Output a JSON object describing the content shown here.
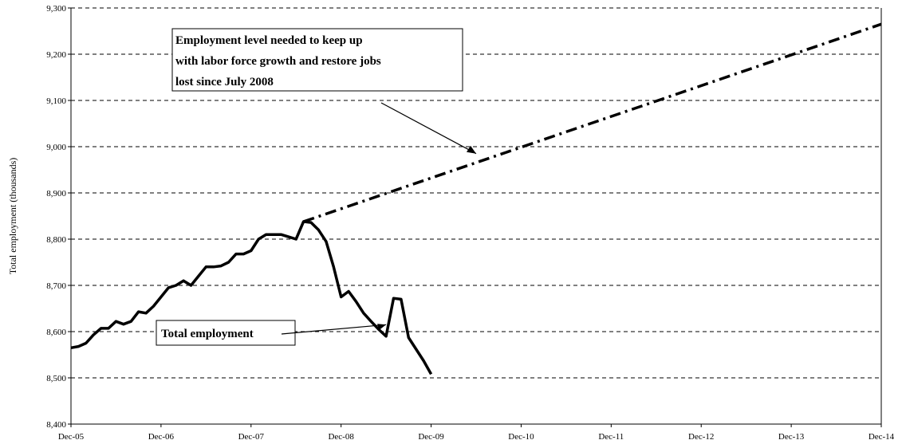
{
  "chart_data": {
    "type": "line",
    "ylabel": "Total  employment (thousands)",
    "xlabel": "",
    "ylim": [
      8400,
      9300
    ],
    "y_ticks": [
      "8,400",
      "8,500",
      "8,600",
      "8,700",
      "8,800",
      "8,900",
      "9,000",
      "9,100",
      "9,200",
      "9,300"
    ],
    "x_range": [
      "Dec-05",
      "Dec-14"
    ],
    "x_ticks": [
      "Dec-05",
      "Dec-06",
      "Dec-07",
      "Dec-08",
      "Dec-09",
      "Dec-10",
      "Dec-11",
      "Dec-12",
      "Dec-13",
      "Dec-14"
    ],
    "grid": "horizontal dashed",
    "series": [
      {
        "name": "Total employment",
        "style": "solid",
        "color": "#000000",
        "x": [
          "Dec-05",
          "Jan-06",
          "Feb-06",
          "Mar-06",
          "Apr-06",
          "May-06",
          "Jun-06",
          "Jul-06",
          "Aug-06",
          "Sep-06",
          "Oct-06",
          "Nov-06",
          "Dec-06",
          "Jan-07",
          "Feb-07",
          "Mar-07",
          "Apr-07",
          "May-07",
          "Jun-07",
          "Jul-07",
          "Aug-07",
          "Sep-07",
          "Oct-07",
          "Nov-07",
          "Dec-07",
          "Jan-08",
          "Feb-08",
          "Mar-08",
          "Apr-08",
          "May-08",
          "Jun-08",
          "Jul-08",
          "Aug-08",
          "Sep-08",
          "Oct-08",
          "Nov-08",
          "Dec-08",
          "Jan-09",
          "Feb-09",
          "Mar-09",
          "Apr-09",
          "May-09",
          "Jun-09",
          "Jul-09",
          "Aug-09",
          "Sep-09",
          "Oct-09",
          "Nov-09",
          "Dec-09"
        ],
        "y": [
          8565,
          8568,
          8575,
          8593,
          8607,
          8607,
          8622,
          8616,
          8622,
          8643,
          8640,
          8655,
          8675,
          8695,
          8700,
          8710,
          8700,
          8720,
          8740,
          8740,
          8742,
          8750,
          8768,
          8768,
          8775,
          8800,
          8810,
          8810,
          8810,
          8805,
          8800,
          8838,
          8836,
          8820,
          8795,
          8740,
          8675,
          8687,
          8665,
          8640,
          8622,
          8605,
          8590,
          8672,
          8670,
          8587,
          8562,
          8537,
          8508
        ]
      },
      {
        "name": "Employment level needed to keep up with labor force growth and restore jobs lost since July 2008",
        "style": "dash-dot",
        "color": "#000000",
        "x": [
          "Jul-08",
          "Dec-14"
        ],
        "y": [
          8838,
          9265
        ]
      }
    ],
    "annotations": [
      {
        "lines": [
          "Employment level needed to keep up",
          "with labor force growth and restore jobs",
          "lost since July 2008"
        ],
        "arrow_to": {
          "x": "Jun-10",
          "y": 8985
        }
      },
      {
        "lines": [
          "Total employment"
        ],
        "arrow_to": {
          "x": "Jun-09",
          "y": 8615
        }
      }
    ]
  }
}
